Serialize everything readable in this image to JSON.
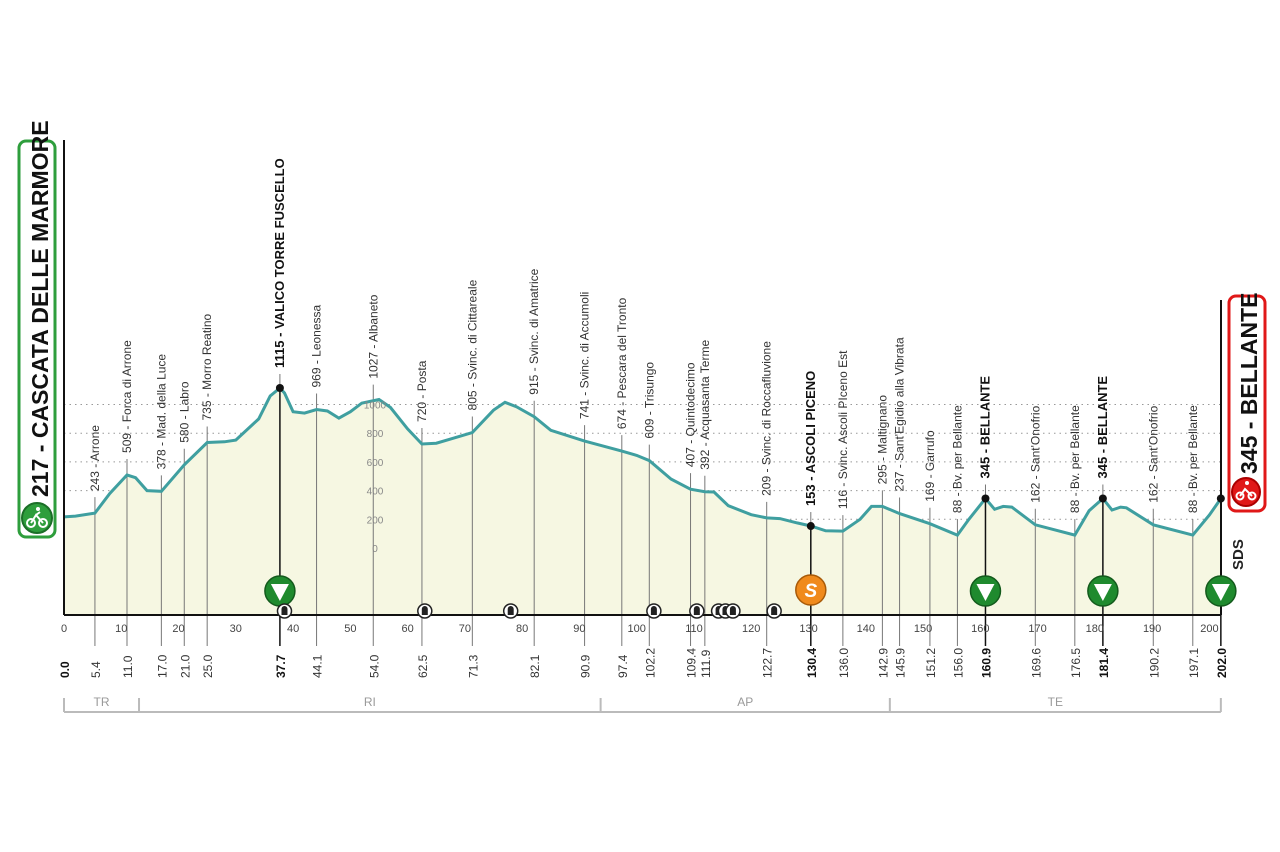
{
  "chart_data": {
    "type": "area",
    "start": {
      "label": "217 - CASCATA DELLE MARMORE",
      "icon": "bike-start-icon",
      "color": "#2e9e3c"
    },
    "finish": {
      "label": "345 - BELLANTE",
      "icon": "bike-finish-icon",
      "color": "#e01818"
    },
    "logo": "SDS",
    "xlim": [
      0,
      202
    ],
    "x_ticks": [
      0,
      10,
      20,
      30,
      40,
      50,
      60,
      70,
      80,
      90,
      100,
      110,
      120,
      130,
      140,
      150,
      160,
      170,
      180,
      190,
      200
    ],
    "y_ticks": [
      0,
      200,
      400,
      600,
      800,
      1000
    ],
    "colors": {
      "line": "#3f9fa0",
      "fill": "#f6f7e2",
      "kom": "#1f8a2e",
      "sprint": "#f08a1c"
    },
    "profile": [
      [
        0,
        217
      ],
      [
        2,
        222
      ],
      [
        5.4,
        243
      ],
      [
        8,
        380
      ],
      [
        11,
        509
      ],
      [
        12.5,
        490
      ],
      [
        14.5,
        400
      ],
      [
        17,
        395
      ],
      [
        21,
        580
      ],
      [
        25,
        735
      ],
      [
        28,
        740
      ],
      [
        30,
        752
      ],
      [
        34,
        900
      ],
      [
        36,
        1060
      ],
      [
        37.7,
        1115
      ],
      [
        38.5,
        1080
      ],
      [
        40,
        950
      ],
      [
        42,
        940
      ],
      [
        44.1,
        965
      ],
      [
        46,
        955
      ],
      [
        48,
        905
      ],
      [
        50,
        950
      ],
      [
        52,
        1010
      ],
      [
        55,
        1035
      ],
      [
        57,
        980
      ],
      [
        60,
        830
      ],
      [
        62.5,
        725
      ],
      [
        65,
        730
      ],
      [
        68,
        765
      ],
      [
        71.3,
        805
      ],
      [
        75,
        960
      ],
      [
        77,
        1015
      ],
      [
        79,
        985
      ],
      [
        82.1,
        915
      ],
      [
        85,
        820
      ],
      [
        90.9,
        745
      ],
      [
        97.4,
        675
      ],
      [
        100,
        645
      ],
      [
        102.2,
        609
      ],
      [
        106,
        480
      ],
      [
        109.4,
        410
      ],
      [
        111.9,
        392
      ],
      [
        113.5,
        390
      ],
      [
        116,
        295
      ],
      [
        120,
        232
      ],
      [
        122.7,
        210
      ],
      [
        125,
        205
      ],
      [
        128,
        175
      ],
      [
        130.4,
        153
      ],
      [
        133,
        120
      ],
      [
        136,
        118
      ],
      [
        139,
        200
      ],
      [
        141,
        290
      ],
      [
        142.9,
        290
      ],
      [
        145.9,
        240
      ],
      [
        151.2,
        169
      ],
      [
        156,
        90
      ],
      [
        158,
        200
      ],
      [
        160.9,
        345
      ],
      [
        162.5,
        270
      ],
      [
        164,
        290
      ],
      [
        165.5,
        285
      ],
      [
        169.6,
        162
      ],
      [
        176.5,
        90
      ],
      [
        179,
        260
      ],
      [
        181.4,
        345
      ],
      [
        183,
        265
      ],
      [
        184.5,
        285
      ],
      [
        185.5,
        280
      ],
      [
        190.2,
        162
      ],
      [
        197.1,
        90
      ],
      [
        200,
        230
      ],
      [
        202,
        345
      ]
    ],
    "waypoints": [
      {
        "km": "0.0",
        "x": 0,
        "bold": true
      },
      {
        "km": "5.4",
        "x": 5.4,
        "alt": 243,
        "label": "243 - Arrone"
      },
      {
        "km": "11.0",
        "x": 11.0,
        "alt": 509,
        "label": "509 - Forca di Arrone"
      },
      {
        "km": "17.0",
        "x": 17.0,
        "alt": 378,
        "label": "378 - Mad. della Luce"
      },
      {
        "km": "21.0",
        "x": 21.0,
        "alt": 580,
        "label": "580 - Labro"
      },
      {
        "km": "25.0",
        "x": 25.0,
        "alt": 735,
        "label": "735 - Morro Reatino"
      },
      {
        "km": "37.7",
        "x": 37.7,
        "alt": 1115,
        "label": "1115 - VALICO TORRE FUSCELLO",
        "bold": true,
        "marker": "kom"
      },
      {
        "km": "44.1",
        "x": 44.1,
        "alt": 969,
        "label": "969 - Leonessa"
      },
      {
        "km": "54.0",
        "x": 54.0,
        "alt": 1027,
        "label": "1027 - Albaneto"
      },
      {
        "km": "62.5",
        "x": 62.5,
        "alt": 720,
        "label": "720 - Posta"
      },
      {
        "km": "71.3",
        "x": 71.3,
        "alt": 805,
        "label": "805 - Svinc. di Cittareale"
      },
      {
        "km": "82.1",
        "x": 82.1,
        "alt": 915,
        "label": "915 - Svinc. di Amatrice"
      },
      {
        "km": "90.9",
        "x": 90.9,
        "alt": 741,
        "label": "741 - Svinc. di Accumoli"
      },
      {
        "km": "97.4",
        "x": 97.4,
        "alt": 674,
        "label": "674 - Pescara del Tronto"
      },
      {
        "km": "102.2",
        "x": 102.2,
        "alt": 609,
        "label": "609 - Trisungo"
      },
      {
        "km": "109.4",
        "x": 109.4,
        "alt": 407,
        "label": "407 - Quintodecimo"
      },
      {
        "km": "111.9",
        "x": 111.9,
        "alt": 392,
        "label": "392 - Acquasanta Terme"
      },
      {
        "km": "122.7",
        "x": 122.7,
        "alt": 209,
        "label": "209 - Svinc. di Roccafluvione"
      },
      {
        "km": "130.4",
        "x": 130.4,
        "alt": 153,
        "label": "153 - ASCOLI PICENO",
        "bold": true,
        "marker": "sprint",
        "marker_text": "S"
      },
      {
        "km": "136.0",
        "x": 136.0,
        "alt": 116,
        "label": "116 - Svinc. Ascoli PIceno Est"
      },
      {
        "km": "142.9",
        "x": 142.9,
        "alt": 295,
        "label": "295 - Maltignano"
      },
      {
        "km": "145.9",
        "x": 145.9,
        "alt": 237,
        "label": "237 - Sant'Egidio alla Vibrata"
      },
      {
        "km": "151.2",
        "x": 151.2,
        "alt": 169,
        "label": "169 - Garrufo"
      },
      {
        "km": "156.0",
        "x": 156.0,
        "alt": 88,
        "label": "88 - Bv. per Bellante"
      },
      {
        "km": "160.9",
        "x": 160.9,
        "alt": 345,
        "label": "345 - BELLANTE",
        "bold": true,
        "marker": "kom"
      },
      {
        "km": "169.6",
        "x": 169.6,
        "alt": 162,
        "label": "162 - Sant'Onofrio"
      },
      {
        "km": "176.5",
        "x": 176.5,
        "alt": 88,
        "label": "88 - Bv. per Bellante"
      },
      {
        "km": "181.4",
        "x": 181.4,
        "alt": 345,
        "label": "345 - BELLANTE",
        "bold": true,
        "marker": "kom"
      },
      {
        "km": "190.2",
        "x": 190.2,
        "alt": 162,
        "label": "162 - Sant'Onofrio"
      },
      {
        "km": "197.1",
        "x": 197.1,
        "alt": 88,
        "label": "88 - Bv. per Bellante"
      },
      {
        "km": "202.0",
        "x": 202.0,
        "bold": true,
        "marker": "kom"
      }
    ],
    "tunnels_km": [
      38.5,
      63,
      78,
      103,
      110.5,
      114.3,
      115.5,
      116.8,
      124
    ],
    "provinces": [
      {
        "label": "TR",
        "from": 0,
        "to": 13.1
      },
      {
        "label": "RI",
        "from": 13.1,
        "to": 93.7
      },
      {
        "label": "AP",
        "from": 93.7,
        "to": 144.2
      },
      {
        "label": "TE",
        "from": 144.2,
        "to": 202
      }
    ]
  }
}
